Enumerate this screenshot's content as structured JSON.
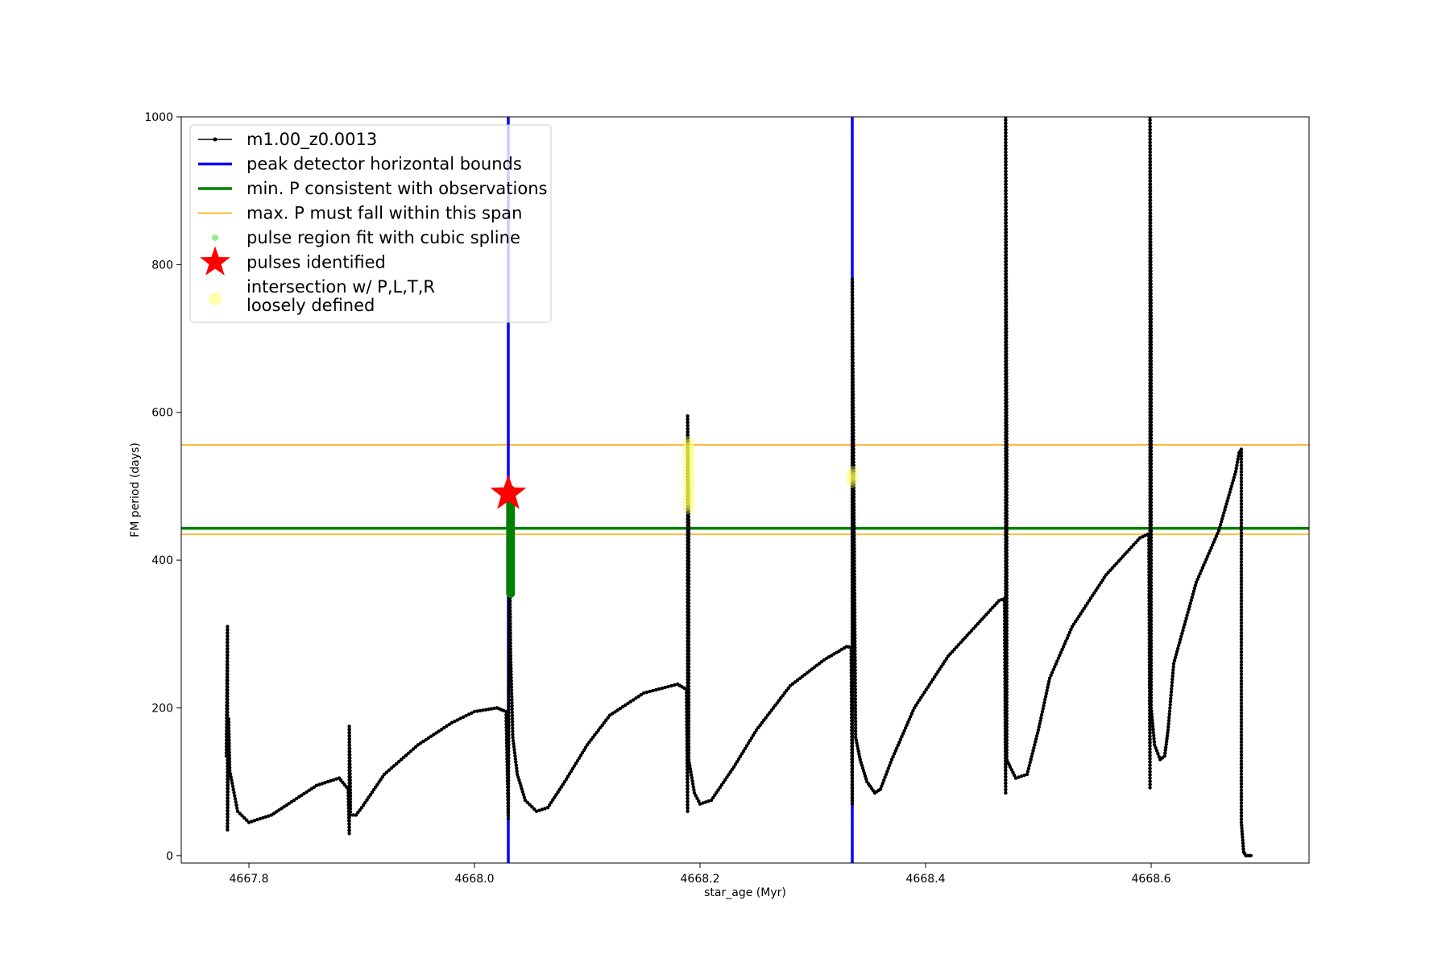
{
  "chart_data": {
    "type": "line",
    "xlabel": "star_age (Myr)",
    "ylabel": "FM period (days)",
    "xlim": [
      4667.74,
      4668.74
    ],
    "ylim": [
      -10,
      1000
    ],
    "x_ticks": [
      4667.8,
      4668.0,
      4668.2,
      4668.4,
      4668.6
    ],
    "x_tick_labels": [
      "4667.8",
      "4668.0",
      "4668.2",
      "4668.4",
      "4668.6"
    ],
    "y_ticks": [
      0,
      200,
      400,
      600,
      800,
      1000
    ],
    "y_tick_labels": [
      "0",
      "200",
      "400",
      "600",
      "800",
      "1000"
    ],
    "grid": false,
    "legend_position": "upper-left",
    "colors": {
      "model": "#000000",
      "peak_bounds": "#0000ff",
      "min_period": "#008000",
      "max_period_span": "#ffa500",
      "spline_fit": "#90ee90",
      "pulse_marker": "#ff0000",
      "intersection": "#ffff66",
      "pulse_region_points": "#008000"
    },
    "legend": [
      {
        "label": "m1.00_z0.0013",
        "style": "line-dot",
        "color": "#000000"
      },
      {
        "label": "peak detector horizontal bounds",
        "style": "thick-line",
        "color": "#0000ff"
      },
      {
        "label": "min. P consistent with observations",
        "style": "thick-line",
        "color": "#008000"
      },
      {
        "label": "max. P must fall within this span",
        "style": "thin-line",
        "color": "#ffa500"
      },
      {
        "label": "pulse region fit with cubic spline",
        "style": "dot",
        "color": "#90ee90"
      },
      {
        "label": "pulses identified",
        "style": "star",
        "color": "#ff0000"
      },
      {
        "label": "intersection w/ P,L,T,R\nloosely defined",
        "style": "big-dot",
        "color": "#ffffaa"
      }
    ],
    "peak_bounds_x": [
      4668.03,
      4668.335
    ],
    "min_period_y": 443,
    "max_period_span_y": [
      435,
      556
    ],
    "pulse_identified": {
      "x": 4668.03,
      "y": 490
    },
    "intersections": [
      {
        "x": 4668.19,
        "y_range": [
          470,
          560
        ]
      },
      {
        "x": 4668.335,
        "y_range": [
          505,
          520
        ]
      }
    ],
    "pulse_region_fit": {
      "x": 4668.032,
      "y_range": [
        355,
        495
      ]
    },
    "series": [
      {
        "name": "m1.00_z0.0013",
        "x": [
          4667.78,
          4667.781,
          4667.781,
          4667.782,
          4667.783,
          4667.79,
          4667.8,
          4667.82,
          4667.84,
          4667.86,
          4667.88,
          4667.888,
          4667.889,
          4667.889,
          4667.89,
          4667.89,
          4667.895,
          4667.9,
          4667.92,
          4667.95,
          4667.98,
          4668.0,
          4668.02,
          4668.028,
          4668.03,
          4668.031,
          4668.032,
          4668.034,
          4668.038,
          4668.045,
          4668.055,
          4668.065,
          4668.08,
          4668.1,
          4668.12,
          4668.15,
          4668.18,
          4668.188,
          4668.189,
          4668.189,
          4668.19,
          4668.19,
          4668.195,
          4668.2,
          4668.21,
          4668.23,
          4668.25,
          4668.28,
          4668.31,
          4668.33,
          4668.334,
          4668.335,
          4668.335,
          4668.338,
          4668.342,
          4668.348,
          4668.355,
          4668.36,
          4668.37,
          4668.39,
          4668.42,
          4668.45,
          4668.465,
          4668.47,
          4668.471,
          4668.471,
          4668.472,
          4668.472,
          4668.475,
          4668.48,
          4668.49,
          4668.5,
          4668.51,
          4668.53,
          4668.56,
          4668.59,
          4668.597,
          4668.598,
          4668.599,
          4668.599,
          4668.6,
          4668.6,
          4668.603,
          4668.608,
          4668.612,
          4668.615,
          4668.62,
          4668.64,
          4668.66,
          4668.675,
          4668.678,
          4668.68,
          4668.68,
          4668.681,
          4668.682,
          4668.684,
          4668.69
        ],
        "y": [
          135,
          310,
          35,
          185,
          115,
          60,
          45,
          55,
          75,
          95,
          105,
          90,
          30,
          175,
          85,
          55,
          55,
          65,
          110,
          150,
          180,
          195,
          200,
          195,
          50,
          440,
          275,
          160,
          110,
          75,
          60,
          65,
          100,
          150,
          190,
          220,
          232,
          225,
          60,
          595,
          450,
          130,
          85,
          70,
          75,
          120,
          170,
          230,
          265,
          283,
          282,
          70,
          780,
          160,
          130,
          100,
          85,
          90,
          130,
          200,
          270,
          320,
          345,
          348,
          85,
          1000,
          540,
          130,
          120,
          105,
          110,
          170,
          240,
          310,
          380,
          430,
          435,
          432,
          92,
          1000,
          700,
          200,
          150,
          130,
          135,
          170,
          260,
          370,
          440,
          520,
          545,
          550,
          45,
          25,
          5,
          0,
          0
        ]
      }
    ]
  }
}
